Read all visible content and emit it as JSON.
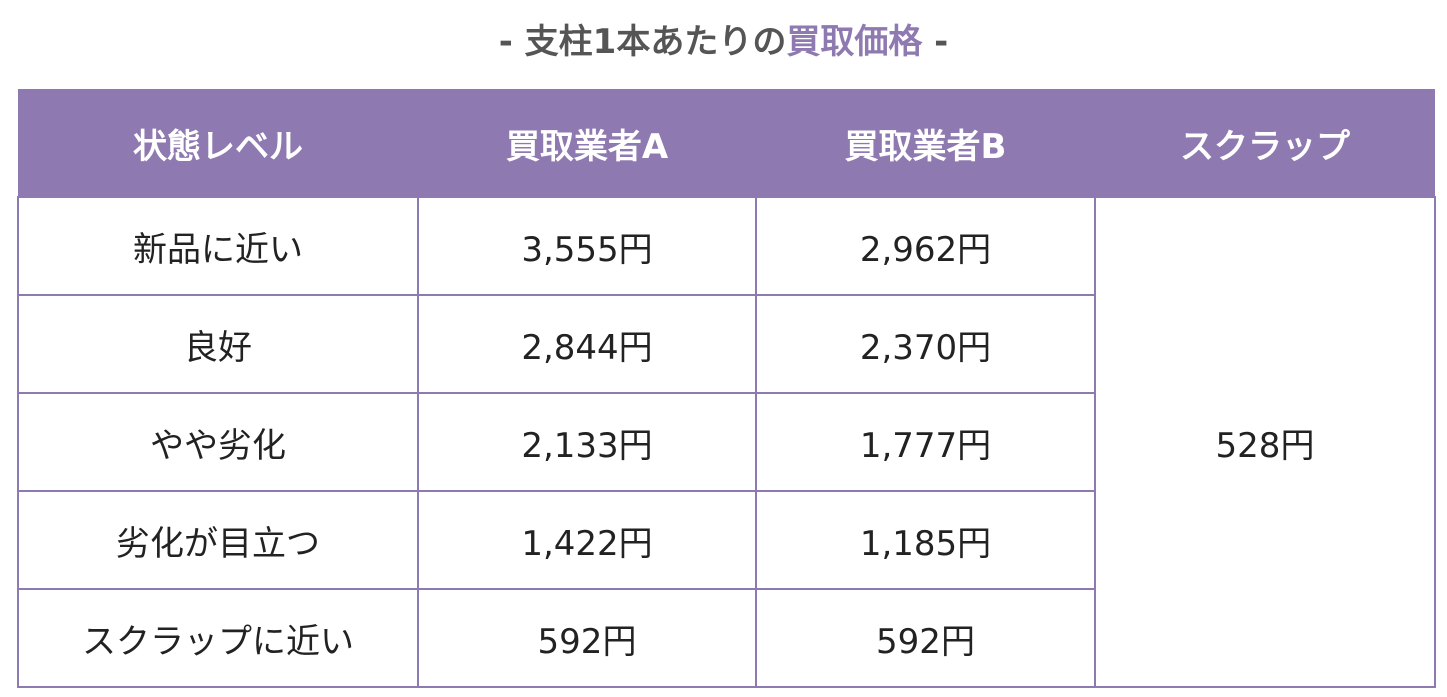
{
  "title": {
    "prefix": "- 支柱1本あたりの",
    "highlight": "買取価格",
    "suffix": " -"
  },
  "colors": {
    "accent": "#8e79b1",
    "title_text": "#555555",
    "header_text": "#ffffff",
    "body_text": "#222222"
  },
  "table": {
    "headers": [
      "状態レベル",
      "買取業者A",
      "買取業者B",
      "スクラップ"
    ],
    "rows": [
      {
        "level": "新品に近い",
        "a": "3,555円",
        "b": "2,962円"
      },
      {
        "level": "良好",
        "a": "2,844円",
        "b": "2,370円"
      },
      {
        "level": "やや劣化",
        "a": "2,133円",
        "b": "1,777円"
      },
      {
        "level": "劣化が目立つ",
        "a": "1,422円",
        "b": "1,185円"
      },
      {
        "level": "スクラップに近い",
        "a": "592円",
        "b": "592円"
      }
    ],
    "scrap_value": "528円"
  }
}
